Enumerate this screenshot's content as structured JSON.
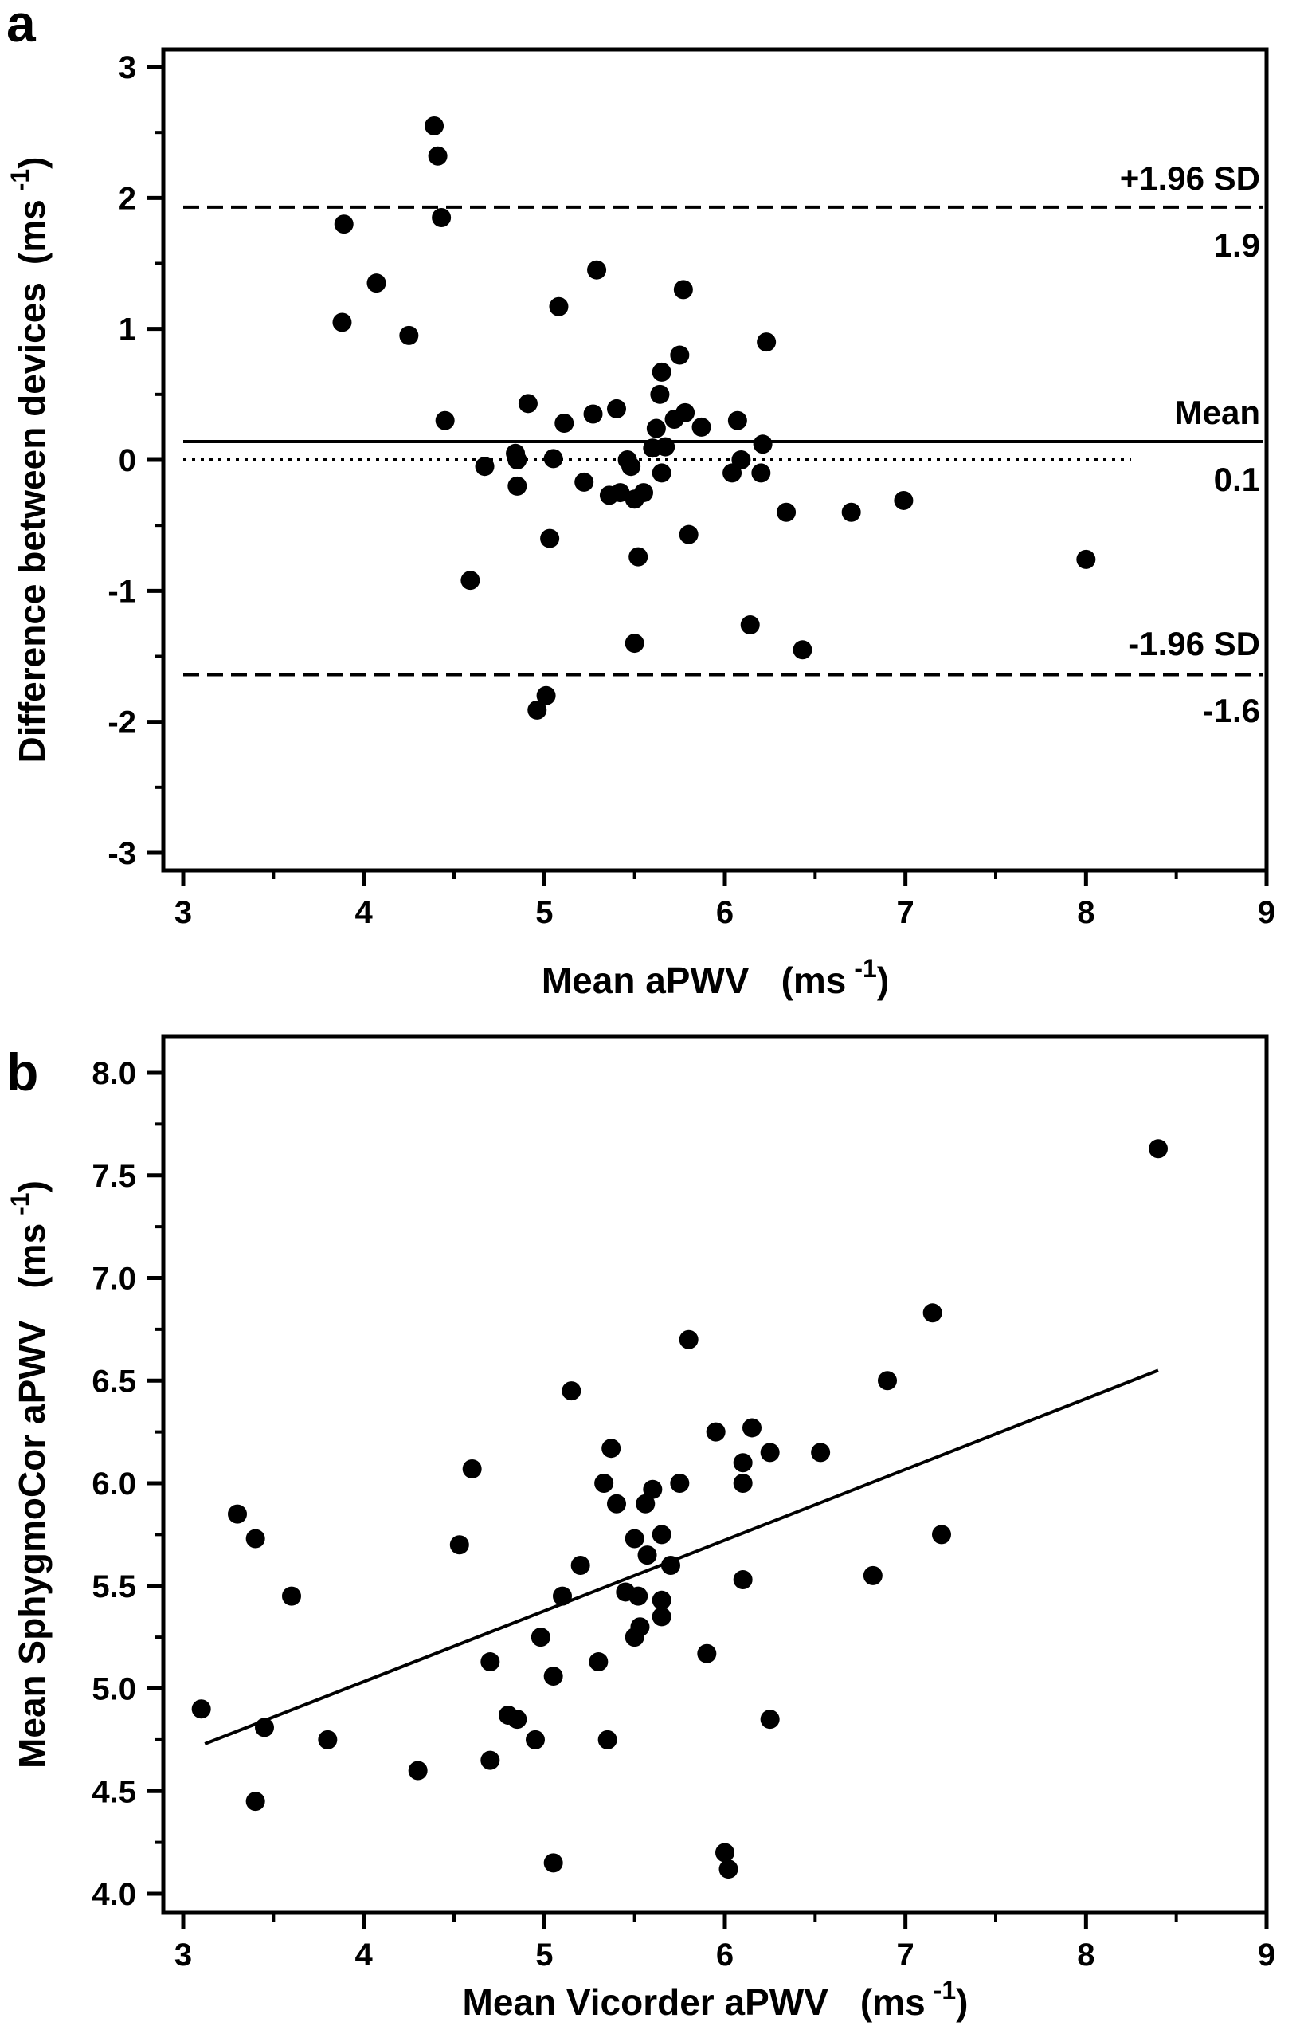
{
  "chart_data": [
    {
      "type": "scatter",
      "panel_label": "a",
      "xlabel": "Mean aPWV",
      "xlabel_unit": "(ms",
      "xlabel_unit_exp": "-1",
      "xlabel_unit_close": ")",
      "ylabel": "Difference between devices",
      "ylabel_unit": "(ms",
      "ylabel_unit_exp": "-1",
      "ylabel_unit_close": ")",
      "xlim": [
        3,
        9
      ],
      "ylim": [
        -3,
        3
      ],
      "xticks": [
        "3",
        "4",
        "5",
        "6",
        "7",
        "8",
        "9"
      ],
      "yticks": [
        "-3",
        "-2",
        "-1",
        "0",
        "1",
        "2",
        "3"
      ],
      "reference_lines": [
        {
          "name": "+1.96 SD",
          "value_label": "1.9",
          "y": 1.93,
          "style": "dashed"
        },
        {
          "name": "Mean",
          "value_label": "0.1",
          "y": 0.14,
          "style": "solid"
        },
        {
          "name": "",
          "value_label": "",
          "y": 0,
          "style": "dotted"
        },
        {
          "name": "-1.96 SD",
          "value_label": "-1.6",
          "y": -1.64,
          "style": "dashed"
        }
      ],
      "points": [
        [
          4.39,
          2.55
        ],
        [
          4.41,
          2.32
        ],
        [
          4.43,
          1.85
        ],
        [
          3.89,
          1.8
        ],
        [
          4.07,
          1.35
        ],
        [
          3.88,
          1.05
        ],
        [
          4.25,
          0.95
        ],
        [
          4.45,
          0.3
        ],
        [
          4.59,
          -0.92
        ],
        [
          4.67,
          -0.05
        ],
        [
          4.84,
          0.05
        ],
        [
          4.85,
          0.0
        ],
        [
          4.85,
          -0.2
        ],
        [
          4.91,
          0.43
        ],
        [
          4.96,
          -1.91
        ],
        [
          5.01,
          -1.8
        ],
        [
          5.03,
          -0.6
        ],
        [
          5.05,
          0.01
        ],
        [
          5.08,
          1.17
        ],
        [
          5.11,
          0.28
        ],
        [
          5.22,
          -0.17
        ],
        [
          5.27,
          0.35
        ],
        [
          5.29,
          1.45
        ],
        [
          5.36,
          -0.27
        ],
        [
          5.4,
          0.39
        ],
        [
          5.42,
          -0.25
        ],
        [
          5.46,
          0.0
        ],
        [
          5.48,
          -0.05
        ],
        [
          5.5,
          -0.3
        ],
        [
          5.5,
          -1.4
        ],
        [
          5.52,
          -0.74
        ],
        [
          5.55,
          -0.25
        ],
        [
          5.6,
          0.09
        ],
        [
          5.62,
          0.24
        ],
        [
          5.64,
          0.5
        ],
        [
          5.65,
          0.67
        ],
        [
          5.65,
          -0.1
        ],
        [
          5.67,
          0.1
        ],
        [
          5.72,
          0.31
        ],
        [
          5.75,
          0.8
        ],
        [
          5.77,
          1.3
        ],
        [
          5.78,
          0.36
        ],
        [
          5.8,
          -0.57
        ],
        [
          5.87,
          0.25
        ],
        [
          6.04,
          -0.1
        ],
        [
          6.07,
          0.3
        ],
        [
          6.09,
          0.0
        ],
        [
          6.14,
          -1.26
        ],
        [
          6.2,
          -0.1
        ],
        [
          6.21,
          0.12
        ],
        [
          6.23,
          0.9
        ],
        [
          6.34,
          -0.4
        ],
        [
          6.43,
          -1.45
        ],
        [
          6.7,
          -0.4
        ],
        [
          6.99,
          -0.31
        ],
        [
          8.0,
          -0.76
        ]
      ]
    },
    {
      "type": "scatter",
      "panel_label": "b",
      "xlabel": "Mean Vicorder aPWV",
      "xlabel_unit": "(ms",
      "xlabel_unit_exp": "-1",
      "xlabel_unit_close": ")",
      "ylabel": "Mean SphygmoCor aPWV",
      "ylabel_unit": "(ms",
      "ylabel_unit_exp": "-1",
      "ylabel_unit_close": ")",
      "xlim": [
        3,
        9
      ],
      "ylim": [
        3.9,
        8.1
      ],
      "xticks": [
        "3",
        "4",
        "5",
        "6",
        "7",
        "8",
        "9"
      ],
      "yticks": [
        "4.0",
        "4.5",
        "5.0",
        "5.5",
        "6.0",
        "6.5",
        "7.0",
        "7.5",
        "8.0"
      ],
      "regression_line": {
        "x": [
          3.12,
          8.4
        ],
        "y": [
          4.73,
          6.55
        ]
      },
      "points": [
        [
          3.1,
          4.9
        ],
        [
          3.3,
          5.85
        ],
        [
          3.4,
          5.73
        ],
        [
          3.4,
          4.45
        ],
        [
          3.45,
          4.81
        ],
        [
          3.6,
          5.45
        ],
        [
          3.8,
          4.75
        ],
        [
          4.3,
          4.6
        ],
        [
          4.53,
          5.7
        ],
        [
          4.6,
          6.07
        ],
        [
          4.7,
          5.13
        ],
        [
          4.7,
          4.65
        ],
        [
          4.8,
          4.87
        ],
        [
          4.85,
          4.85
        ],
        [
          4.95,
          4.75
        ],
        [
          4.98,
          5.25
        ],
        [
          5.05,
          5.06
        ],
        [
          5.05,
          4.15
        ],
        [
          5.1,
          5.45
        ],
        [
          5.15,
          6.45
        ],
        [
          5.2,
          5.6
        ],
        [
          5.3,
          5.13
        ],
        [
          5.33,
          6.0
        ],
        [
          5.35,
          4.75
        ],
        [
          5.37,
          6.17
        ],
        [
          5.4,
          5.9
        ],
        [
          5.45,
          5.47
        ],
        [
          5.5,
          5.73
        ],
        [
          5.5,
          5.25
        ],
        [
          5.52,
          5.45
        ],
        [
          5.53,
          5.3
        ],
        [
          5.56,
          5.9
        ],
        [
          5.57,
          5.65
        ],
        [
          5.6,
          5.97
        ],
        [
          5.65,
          5.75
        ],
        [
          5.65,
          5.43
        ],
        [
          5.65,
          5.35
        ],
        [
          5.7,
          5.6
        ],
        [
          5.75,
          6.0
        ],
        [
          5.8,
          6.7
        ],
        [
          5.9,
          5.17
        ],
        [
          5.95,
          6.25
        ],
        [
          6.0,
          4.2
        ],
        [
          6.02,
          4.12
        ],
        [
          6.1,
          6.1
        ],
        [
          6.1,
          6.0
        ],
        [
          6.1,
          5.53
        ],
        [
          6.15,
          6.27
        ],
        [
          6.25,
          6.15
        ],
        [
          6.25,
          4.85
        ],
        [
          6.53,
          6.15
        ],
        [
          6.82,
          5.55
        ],
        [
          6.9,
          6.5
        ],
        [
          7.15,
          6.83
        ],
        [
          7.2,
          5.75
        ],
        [
          8.4,
          7.63
        ]
      ]
    }
  ]
}
